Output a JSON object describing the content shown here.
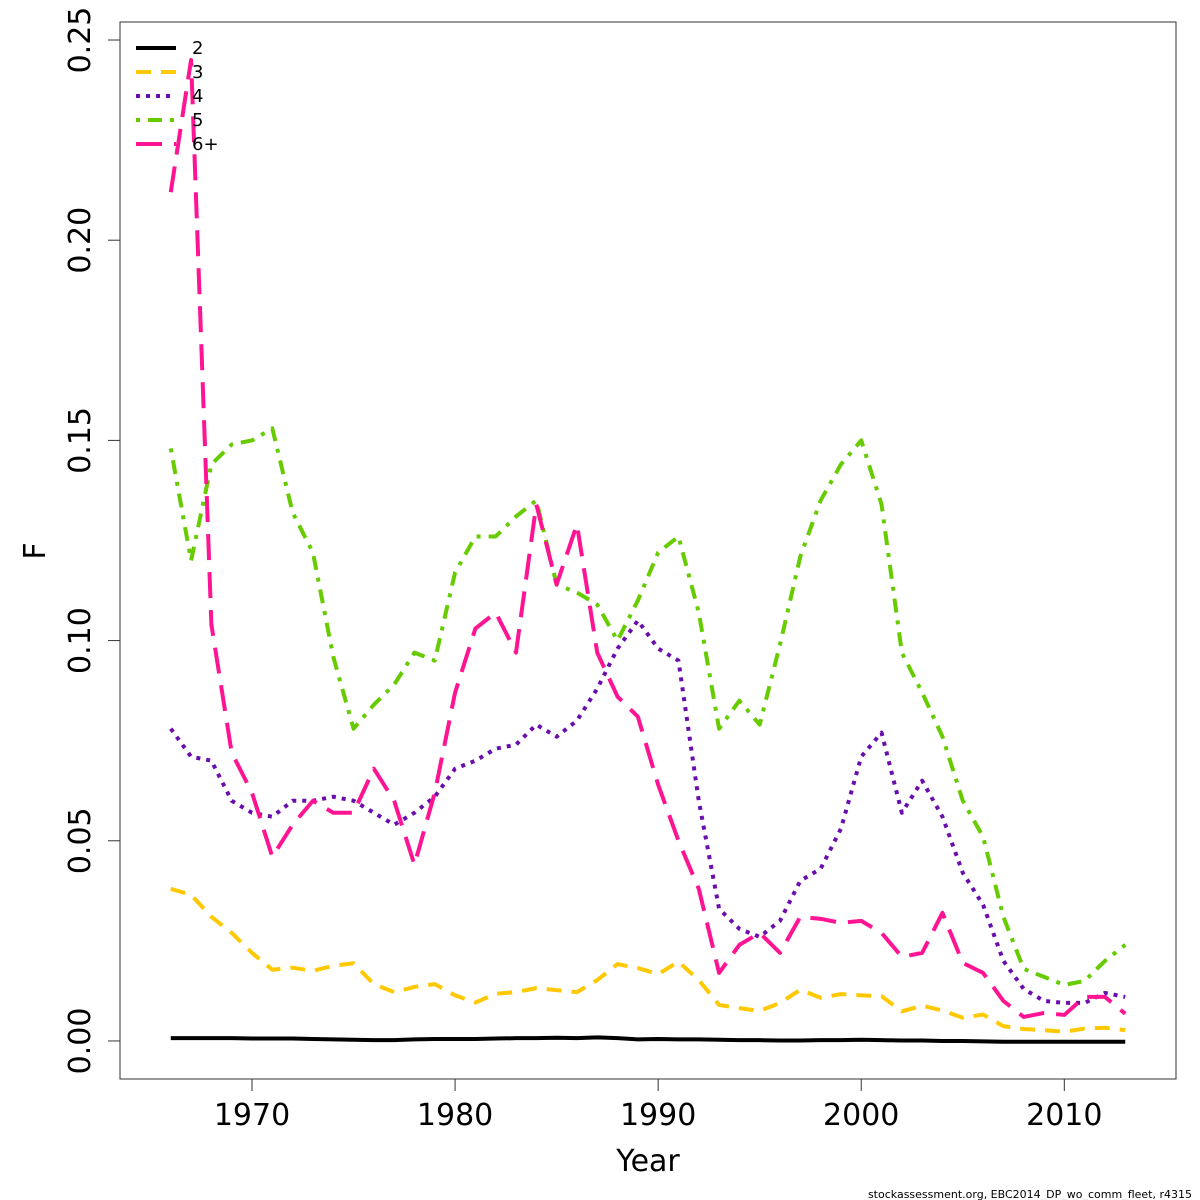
{
  "chart_data": {
    "type": "line",
    "xlabel": "Year",
    "ylabel": "F",
    "xlim": [
      1963.5,
      2015.5
    ],
    "ylim": [
      -0.0095,
      0.2545
    ],
    "x_ticks": [
      1970,
      1980,
      1990,
      2000,
      2010
    ],
    "x_tick_labels": [
      "1970",
      "1980",
      "1990",
      "2000",
      "2010"
    ],
    "y_ticks": [
      0.0,
      0.05,
      0.1,
      0.15,
      0.2,
      0.25
    ],
    "y_tick_labels": [
      "0.00",
      "0.05",
      "0.10",
      "0.15",
      "0.20",
      "0.25"
    ],
    "grid": false,
    "legend_position": "top-left",
    "footer": "stockassessment.org, EBC2014_DP_wo_comm_fleet, r4315",
    "x": [
      1966,
      1967,
      1968,
      1969,
      1970,
      1971,
      1972,
      1973,
      1974,
      1975,
      1976,
      1977,
      1978,
      1979,
      1980,
      1981,
      1982,
      1983,
      1984,
      1985,
      1986,
      1987,
      1988,
      1989,
      1990,
      1991,
      1992,
      1993,
      1994,
      1995,
      1996,
      1997,
      1998,
      1999,
      2000,
      2001,
      2002,
      2003,
      2004,
      2005,
      2006,
      2007,
      2008,
      2009,
      2010,
      2011,
      2012,
      2013
    ],
    "series": [
      {
        "name": "2",
        "color": "#000000",
        "dash": "solid",
        "values": [
          0.0007,
          0.0007,
          0.0007,
          0.0007,
          0.0006,
          0.0006,
          0.0006,
          0.0005,
          0.0004,
          0.0003,
          0.0002,
          0.0002,
          0.0004,
          0.0005,
          0.0005,
          0.0005,
          0.0006,
          0.0007,
          0.0007,
          0.0008,
          0.0007,
          0.0009,
          0.0007,
          0.0004,
          0.0005,
          0.0004,
          0.0004,
          0.0003,
          0.0002,
          0.0002,
          0.0001,
          0.0001,
          0.0002,
          0.0002,
          0.0003,
          0.0002,
          0.0001,
          0.0001,
          0.0,
          0.0,
          -0.0001,
          -0.0002,
          -0.0002,
          -0.0002,
          -0.0002,
          -0.0002,
          -0.0002,
          -0.0002
        ]
      },
      {
        "name": "3",
        "color": "#FFC800",
        "dash": "dashed",
        "values": [
          0.038,
          0.0365,
          0.031,
          0.027,
          0.022,
          0.0178,
          0.0183,
          0.0175,
          0.0188,
          0.0194,
          0.0142,
          0.0122,
          0.0135,
          0.0142,
          0.0114,
          0.0096,
          0.0118,
          0.0122,
          0.0132,
          0.0127,
          0.0122,
          0.0152,
          0.0192,
          0.0182,
          0.0167,
          0.0198,
          0.0152,
          0.009,
          0.0082,
          0.0075,
          0.0095,
          0.0128,
          0.0108,
          0.0117,
          0.0114,
          0.0112,
          0.0074,
          0.0088,
          0.0076,
          0.0058,
          0.0066,
          0.0037,
          0.003,
          0.0027,
          0.0023,
          0.0031,
          0.0033,
          0.0027
        ]
      },
      {
        "name": "4",
        "color": "#6A0DAD",
        "dash": "dotted",
        "values": [
          0.078,
          0.071,
          0.07,
          0.06,
          0.057,
          0.056,
          0.06,
          0.06,
          0.061,
          0.06,
          0.057,
          0.054,
          0.057,
          0.061,
          0.068,
          0.07,
          0.073,
          0.074,
          0.079,
          0.076,
          0.08,
          0.088,
          0.098,
          0.105,
          0.098,
          0.095,
          0.06,
          0.033,
          0.028,
          0.026,
          0.03,
          0.04,
          0.043,
          0.053,
          0.071,
          0.077,
          0.057,
          0.065,
          0.056,
          0.042,
          0.034,
          0.02,
          0.013,
          0.01,
          0.0095,
          0.0095,
          0.012,
          0.011
        ]
      },
      {
        "name": "5",
        "color": "#66CC00",
        "dash": "dotdash",
        "values": [
          0.148,
          0.12,
          0.144,
          0.149,
          0.15,
          0.153,
          0.132,
          0.122,
          0.096,
          0.078,
          0.084,
          0.089,
          0.097,
          0.095,
          0.117,
          0.126,
          0.126,
          0.131,
          0.135,
          0.114,
          0.112,
          0.109,
          0.1,
          0.11,
          0.122,
          0.126,
          0.107,
          0.078,
          0.085,
          0.079,
          0.099,
          0.121,
          0.135,
          0.144,
          0.15,
          0.134,
          0.097,
          0.087,
          0.076,
          0.06,
          0.051,
          0.031,
          0.018,
          0.016,
          0.014,
          0.015,
          0.02,
          0.024
        ]
      },
      {
        "name": "6+",
        "color": "#FF1493",
        "dash": "longdash",
        "values": [
          0.212,
          0.245,
          0.104,
          0.072,
          0.062,
          0.046,
          0.054,
          0.06,
          0.057,
          0.057,
          0.068,
          0.06,
          0.044,
          0.062,
          0.087,
          0.103,
          0.107,
          0.097,
          0.134,
          0.114,
          0.129,
          0.097,
          0.086,
          0.081,
          0.064,
          0.05,
          0.038,
          0.017,
          0.024,
          0.027,
          0.022,
          0.031,
          0.0305,
          0.0295,
          0.03,
          0.027,
          0.021,
          0.022,
          0.032,
          0.0195,
          0.017,
          0.01,
          0.006,
          0.007,
          0.0065,
          0.011,
          0.011,
          0.0068
        ]
      }
    ]
  }
}
